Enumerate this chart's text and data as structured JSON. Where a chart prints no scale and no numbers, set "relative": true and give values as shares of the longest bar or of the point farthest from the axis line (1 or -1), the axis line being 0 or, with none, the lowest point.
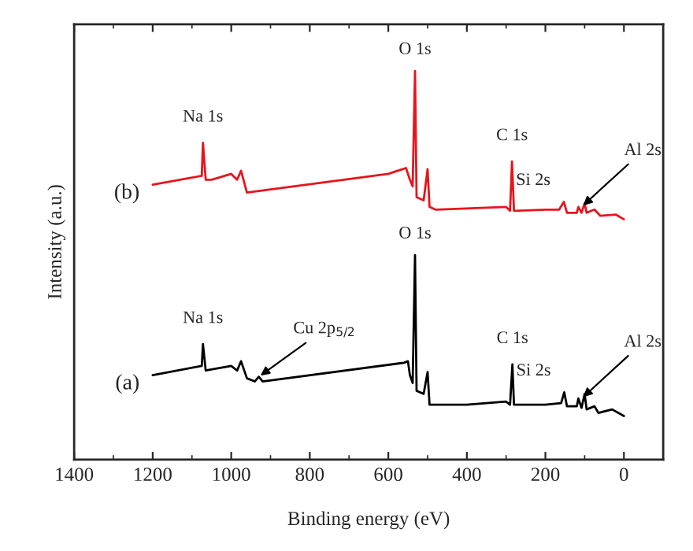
{
  "chart_data": {
    "type": "line",
    "relative": true,
    "xlabel": "Binding energy (eV)",
    "ylabel": "Intensity (a.u.)",
    "xlim": [
      1400,
      -100
    ],
    "xticks": [
      1400,
      1200,
      1000,
      800,
      600,
      400,
      200,
      0
    ],
    "grid": false,
    "legend": false,
    "marker": "none",
    "line_style": "solid",
    "series": [
      {
        "color": "#e8141c",
        "x": [
          1200,
          1075,
          1072,
          1065,
          1050,
          1000,
          985,
          975,
          960,
          600,
          555,
          545,
          538,
          532,
          528,
          510,
          500,
          495,
          480,
          300,
          290,
          285,
          280,
          200,
          165,
          153,
          145,
          120,
          116,
          108,
          100,
          95,
          75,
          60,
          20,
          0
        ],
        "values": [
          0.707,
          0.73,
          0.815,
          0.72,
          0.72,
          0.735,
          0.72,
          0.743,
          0.687,
          0.735,
          0.75,
          0.72,
          0.703,
          1.0,
          0.675,
          0.667,
          0.747,
          0.65,
          0.643,
          0.65,
          0.64,
          0.767,
          0.64,
          0.643,
          0.643,
          0.663,
          0.635,
          0.635,
          0.65,
          0.635,
          0.659,
          0.635,
          0.643,
          0.627,
          0.63,
          0.618
        ]
      },
      {
        "color": "#000000",
        "x": [
          1200,
          1075,
          1072,
          1065,
          1000,
          985,
          975,
          960,
          940,
          930,
          920,
          560,
          550,
          545,
          538,
          532,
          528,
          510,
          500,
          495,
          400,
          300,
          290,
          284,
          280,
          200,
          160,
          152,
          145,
          120,
          116,
          108,
          100,
          95,
          75,
          65,
          30,
          0
        ],
        "values": [
          0.217,
          0.241,
          0.297,
          0.229,
          0.241,
          0.229,
          0.253,
          0.209,
          0.201,
          0.213,
          0.201,
          0.249,
          0.253,
          0.217,
          0.197,
          0.526,
          0.177,
          0.169,
          0.225,
          0.141,
          0.141,
          0.149,
          0.141,
          0.245,
          0.141,
          0.141,
          0.145,
          0.173,
          0.137,
          0.137,
          0.157,
          0.133,
          0.169,
          0.129,
          0.137,
          0.12,
          0.129,
          0.112
        ]
      }
    ],
    "annotations": [
      {
        "text": "(b)",
        "x": 1200,
        "y": 0.707
      },
      {
        "text": "Na 1s",
        "x": 1072,
        "y": 0.815
      },
      {
        "text": "O 1s",
        "x": 532,
        "y": 1.0
      },
      {
        "text": "C 1s",
        "x": 285,
        "y": 0.767
      },
      {
        "text": "Si 2s",
        "x": 153,
        "y": 0.663
      },
      {
        "text": "Al 2s",
        "x": 108,
        "y": 0.65
      },
      {
        "text": "(a)",
        "x": 1200,
        "y": 0.217
      },
      {
        "text": "Na 1s",
        "x": 1072,
        "y": 0.297
      },
      {
        "text": "Cu 2p$_{5/2}$",
        "x": 930,
        "y": 0.213
      },
      {
        "text": "O 1s",
        "x": 532,
        "y": 0.526
      },
      {
        "text": "C 1s",
        "x": 284,
        "y": 0.245
      },
      {
        "text": "Si 2s",
        "x": 152,
        "y": 0.173
      },
      {
        "text": "Al 2s",
        "x": 108,
        "y": 0.157
      }
    ]
  }
}
